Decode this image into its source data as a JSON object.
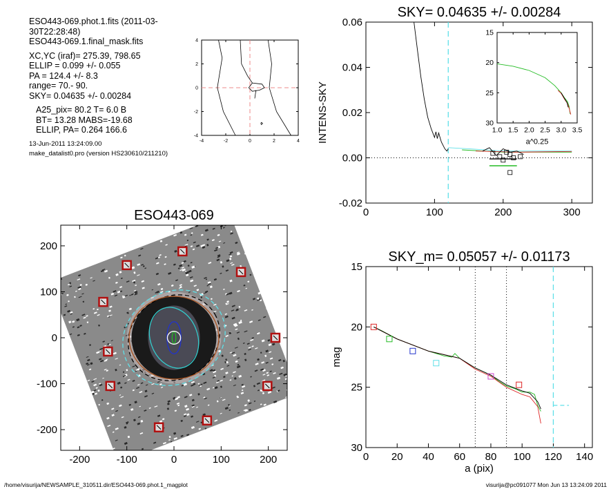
{
  "header": {
    "lines": [
      "ESO443-069.phot.1.fits  (2011-03-30T22:28:48)",
      "ESO443-069.1.final_mask.fits",
      "XC,YC (iraf)=   275.39, 798.65",
      "ELLIP = 0.099 +/- 0.055",
      "PA    = 124.4 +/-   8.3",
      "range=   70.-   90.",
      "SKY= 0.04635 +/- 0.00284",
      "A25_pix= 80.2   T= 6.0  B",
      "BT=  13.28   MABS=-19.68",
      "ELLIP, PA= 0.264   166.6",
      "13-Jun-2011 13:24:09.00",
      "make_datalist0.pro (version HS230610/211210)"
    ]
  },
  "footer": {
    "left": "/home/visurija/NEWSAMPLE_310511.dir/ESO443-069.phot.1_magplot",
    "right": "visurija@pc091077  Mon Jun 13 13:24:09 2011"
  },
  "colors": {
    "axis": "#000000",
    "cyan": "#5fe0e8",
    "green": "#22bb22",
    "red": "#dd2222",
    "pinkdash": "#ee8888",
    "contour_cyan": "#33cccc",
    "blue": "#2233cc",
    "brown": "#aa5522",
    "magenta": "#cc44cc",
    "olive": "#999933"
  },
  "chart_data": [
    {
      "id": "center",
      "type": "line",
      "title": "",
      "xlim": [
        -4,
        4
      ],
      "ylim": [
        -4,
        4
      ],
      "x_ticks": [
        -4,
        -2,
        0,
        2,
        4
      ],
      "y_ticks": [
        -4,
        -2,
        0,
        2,
        4
      ],
      "crosshair": [
        0,
        0
      ],
      "series": [
        {
          "values": [
            [
              -2.6,
              4
            ],
            [
              -2.3,
              2.5
            ],
            [
              -2.7,
              0
            ],
            [
              -2.2,
              -2
            ],
            [
              -1.2,
              -4
            ]
          ]
        },
        {
          "values": [
            [
              -0.8,
              4
            ],
            [
              -0.7,
              2
            ],
            [
              -0.2,
              1
            ],
            [
              0.2,
              0.4
            ],
            [
              1.0,
              0.3
            ],
            [
              1.2,
              0
            ],
            [
              0.8,
              -0.2
            ],
            [
              0.2,
              -0.3
            ],
            [
              -0.1,
              0
            ],
            [
              0.2,
              0.4
            ]
          ]
        },
        {
          "values": [
            [
              0.5,
              -0.2
            ],
            [
              0.4,
              -0.9
            ]
          ]
        },
        {
          "values": [
            [
              1.5,
              4
            ],
            [
              1.8,
              2
            ],
            [
              1.6,
              0
            ],
            [
              2.2,
              -2
            ],
            [
              3.4,
              -4
            ]
          ]
        },
        {
          "values": [
            [
              0.95,
              -2.9
            ],
            [
              1.05,
              -3.0
            ],
            [
              0.95,
              -3.1
            ],
            [
              0.9,
              -3.0
            ],
            [
              0.95,
              -2.9
            ]
          ]
        }
      ]
    },
    {
      "id": "sky",
      "type": "line",
      "title": "SKY= 0.04635 +/- 0.00284",
      "xlabel": "",
      "ylabel": "INTENS-SKY",
      "xlim": [
        0,
        330
      ],
      "ylim": [
        -0.02,
        0.06
      ],
      "x_ticks": [
        0,
        100,
        200,
        300
      ],
      "y_ticks": [
        "-0.02",
        "0.00",
        "0.02",
        "0.04",
        "0.06"
      ],
      "vline": 120,
      "zero_line": 0,
      "series": [
        {
          "color": "#000000",
          "values": [
            [
              70,
              0.06
            ],
            [
              75,
              0.048
            ],
            [
              80,
              0.036
            ],
            [
              85,
              0.026
            ],
            [
              90,
              0.018
            ],
            [
              95,
              0.013
            ],
            [
              100,
              0.009
            ],
            [
              102,
              0.0115
            ],
            [
              104,
              0.0085
            ],
            [
              106,
              0.011
            ],
            [
              110,
              0.007
            ],
            [
              115,
              0.004
            ],
            [
              118,
              0.003
            ],
            [
              120,
              0.004
            ]
          ]
        },
        {
          "color": "#5fe0e8",
          "values": [
            [
              120,
              0.0045
            ],
            [
              150,
              0.004
            ],
            [
              200,
              0.003
            ],
            [
              260,
              0.003
            ],
            [
              300,
              0.003
            ]
          ]
        },
        {
          "color": "#22bb22",
          "values": [
            [
              140,
              0.0035
            ],
            [
              200,
              0.0025
            ],
            [
              260,
              0.0025
            ],
            [
              300,
              0.0025
            ]
          ]
        },
        {
          "color": "#dd2222",
          "values": [
            [
              160,
              0.003
            ],
            [
              220,
              0.0025
            ],
            [
              300,
              0.0028
            ]
          ]
        },
        {
          "color": "#000000",
          "values": [
            [
              170,
              0.003
            ],
            [
              180,
              0.0045
            ],
            [
              190,
              0.001
            ],
            [
              200,
              0.004
            ],
            [
              210,
              0.0025
            ],
            [
              220,
              0.003
            ],
            [
              230,
              0.0015
            ]
          ]
        },
        {
          "color": "#22bb22",
          "values": [
            [
              180,
              -0.0035
            ],
            [
              220,
              -0.0035
            ]
          ]
        },
        {
          "color": "#000000",
          "values": [
            [
              180,
              -0.0005
            ],
            [
              220,
              -0.0005
            ]
          ]
        }
      ],
      "markers": [
        [
          185,
          0.002
        ],
        [
          195,
          0.0005
        ],
        [
          200,
          -0.001
        ],
        [
          205,
          0.0025
        ],
        [
          210,
          0.0015
        ],
        [
          215,
          0.0
        ],
        [
          225,
          0.0005
        ],
        [
          210,
          -0.0065
        ]
      ]
    },
    {
      "id": "sky_inset",
      "type": "line",
      "xlabel": "a^0.25",
      "ylabel": "",
      "xlim": [
        1.0,
        3.5
      ],
      "ylim": [
        30,
        15
      ],
      "x_ticks": [
        "1.0",
        "1.5",
        "2.0",
        "2.5",
        "3.0",
        "3.5"
      ],
      "y_ticks": [
        15,
        20,
        25,
        30
      ],
      "series": [
        {
          "color": "#22bb22",
          "values": [
            [
              1.0,
              20.2
            ],
            [
              1.5,
              20.6
            ],
            [
              2.0,
              21.3
            ],
            [
              2.5,
              22.5
            ],
            [
              2.8,
              23.8
            ],
            [
              3.0,
              25.0
            ],
            [
              3.1,
              25.8
            ],
            [
              3.2,
              26.5
            ],
            [
              3.25,
              27.3
            ],
            [
              3.28,
              28.5
            ]
          ]
        },
        {
          "color": "#dd2222",
          "values": [
            [
              2.9,
              24.6
            ],
            [
              3.0,
              25.1
            ],
            [
              3.1,
              26.0
            ],
            [
              3.2,
              26.8
            ],
            [
              3.25,
              27.6
            ],
            [
              3.3,
              28.6
            ]
          ]
        },
        {
          "color": "#000000",
          "values": [
            [
              3.0,
              25.0
            ],
            [
              3.1,
              25.9
            ],
            [
              3.18,
              26.6
            ],
            [
              3.22,
              27.4
            ]
          ]
        }
      ]
    },
    {
      "id": "image",
      "type": "scatter",
      "title": "ESO443-069",
      "xlim": [
        -240,
        240
      ],
      "ylim": [
        -245,
        245
      ],
      "x_ticks": [
        -200,
        -100,
        0,
        100,
        200
      ],
      "y_ticks": [
        -200,
        -100,
        0,
        100,
        200
      ],
      "square_markers": [
        [
          18,
          188
        ],
        [
          -100,
          158
        ],
        [
          142,
          143
        ],
        [
          -150,
          78
        ],
        [
          215,
          0
        ],
        [
          -140,
          -30
        ],
        [
          -135,
          -105
        ],
        [
          198,
          -105
        ],
        [
          70,
          -180
        ],
        [
          -32,
          -195
        ]
      ],
      "ellipses": [
        {
          "rx": 112,
          "ry": 100,
          "rot": -30,
          "color": "#5fe0e8",
          "dash": true
        },
        {
          "rx": 100,
          "ry": 90,
          "rot": -30,
          "color": "#000000",
          "dash": true
        },
        {
          "rx": 95,
          "ry": 90,
          "rot": 0,
          "color": "#aa5522",
          "dash": false
        },
        {
          "rx": 50,
          "ry": 68,
          "rot": -20,
          "color": "#33cccc",
          "dash": false
        },
        {
          "rx": 15,
          "ry": 35,
          "rot": 0,
          "color": "#2233cc",
          "dash": false
        },
        {
          "rx": 4,
          "ry": 13,
          "rot": 0,
          "color": "#22bb22",
          "dash": false
        },
        {
          "rx": 14,
          "ry": 14,
          "rot": 0,
          "color": "#ffffff",
          "dash": false
        }
      ]
    },
    {
      "id": "mag",
      "type": "line",
      "title": "SKY_m=  0.05057 +/- 0.01173",
      "xlabel": "a (pix)",
      "ylabel": "mag",
      "xlim": [
        0,
        145
      ],
      "ylim": [
        30,
        15
      ],
      "x_ticks": [
        0,
        20,
        40,
        60,
        80,
        100,
        120,
        140
      ],
      "y_ticks": [
        15,
        20,
        25,
        30
      ],
      "vlines_dotted": [
        70,
        90
      ],
      "vline_dashed": 120,
      "series": [
        {
          "color": "#22bb22",
          "values": [
            [
              5,
              20.0
            ],
            [
              10,
              20.3
            ],
            [
              20,
              21.0
            ],
            [
              30,
              21.5
            ],
            [
              40,
              22.0
            ],
            [
              50,
              22.4
            ],
            [
              55,
              22.5
            ],
            [
              57,
              22.2
            ],
            [
              60,
              22.6
            ],
            [
              65,
              23.0
            ],
            [
              70,
              23.4
            ],
            [
              75,
              23.7
            ],
            [
              80,
              24.0
            ],
            [
              85,
              24.5
            ],
            [
              90,
              24.9
            ],
            [
              95,
              25.1
            ],
            [
              100,
              25.4
            ],
            [
              105,
              25.4
            ],
            [
              108,
              25.6
            ],
            [
              110,
              26.5
            ],
            [
              112,
              27.0
            ]
          ]
        },
        {
          "color": "#dd2222",
          "values": [
            [
              5,
              20.0
            ],
            [
              20,
              21.0
            ],
            [
              40,
              22.0
            ],
            [
              60,
              22.6
            ],
            [
              70,
              23.5
            ],
            [
              80,
              24.1
            ],
            [
              90,
              25.0
            ],
            [
              100,
              25.6
            ],
            [
              105,
              25.8
            ],
            [
              110,
              26.6
            ],
            [
              112,
              28.0
            ]
          ]
        },
        {
          "color": "#000000",
          "values": [
            [
              5,
              20.0
            ],
            [
              20,
              21.0
            ],
            [
              40,
              22.0
            ],
            [
              60,
              22.6
            ],
            [
              70,
              23.4
            ],
            [
              80,
              24.0
            ],
            [
              90,
              24.8
            ],
            [
              100,
              25.3
            ],
            [
              105,
              25.5
            ],
            [
              110,
              26.2
            ],
            [
              112,
              26.8
            ]
          ]
        },
        {
          "color": "#5fe0e8",
          "values": [
            [
              120,
              26.5
            ],
            [
              130,
              26.5
            ]
          ]
        }
      ],
      "markers": [
        {
          "x": 5,
          "y": 20.0,
          "color": "#dd2222"
        },
        {
          "x": 15,
          "y": 21.0,
          "color": "#22bb22"
        },
        {
          "x": 30,
          "y": 22.0,
          "color": "#2233cc"
        },
        {
          "x": 45,
          "y": 23.0,
          "color": "#5fe0e8"
        },
        {
          "x": 80,
          "y": 24.1,
          "color": "#cc44cc"
        },
        {
          "x": 98,
          "y": 24.8,
          "color": "#dd2222"
        }
      ]
    }
  ]
}
